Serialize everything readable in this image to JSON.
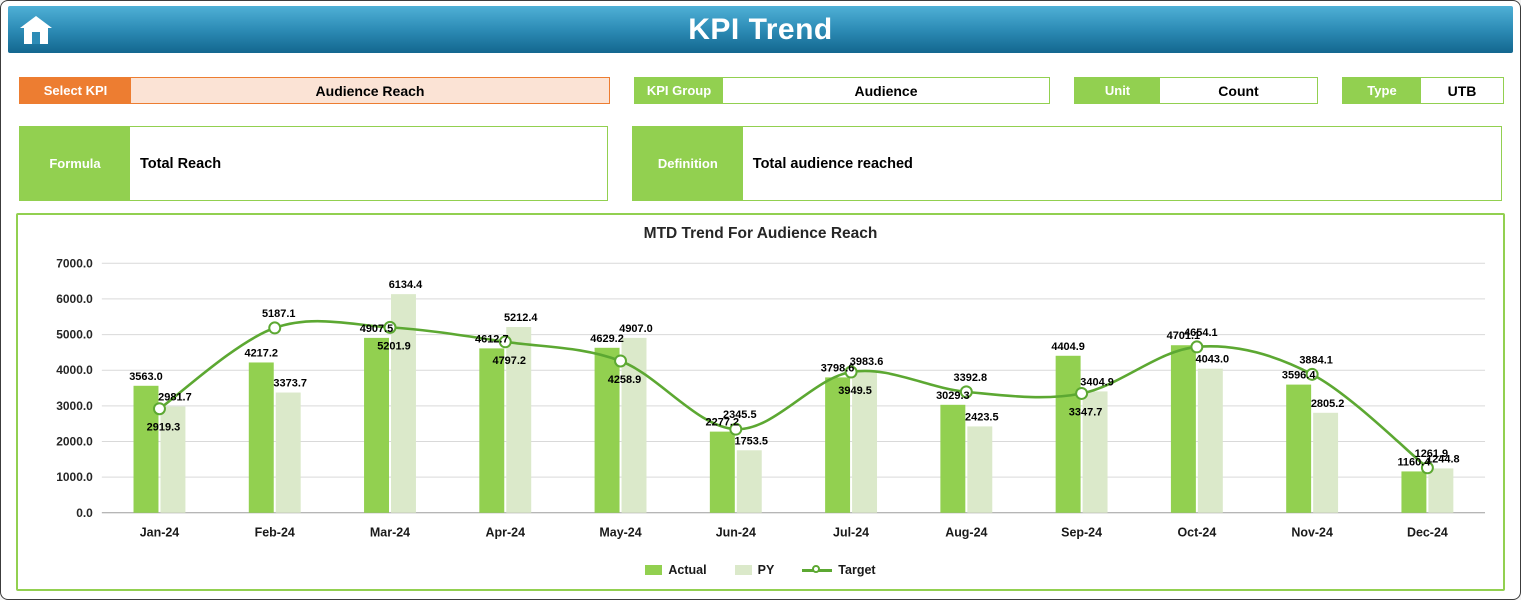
{
  "header": {
    "title": "KPI Trend",
    "home_icon": "home-icon"
  },
  "filters": {
    "select_kpi_label": "Select KPI",
    "select_kpi_value": "Audience Reach",
    "kpi_group_label": "KPI Group",
    "kpi_group_value": "Audience",
    "unit_label": "Unit",
    "unit_value": "Count",
    "type_label": "Type",
    "type_value": "UTB"
  },
  "info": {
    "formula_label": "Formula",
    "formula_value": "Total Reach",
    "definition_label": "Definition",
    "definition_value": "Total audience reached"
  },
  "colors": {
    "accent_orange": "#ed7d31",
    "accent_orange_fill": "#fbe3d5",
    "accent_green": "#92d050",
    "header_blue": "#2d8cb6"
  },
  "chart_data": {
    "type": "bar",
    "subtype": "combo-bar-line",
    "title": "MTD Trend For Audience Reach",
    "categories": [
      "Jan-24",
      "Feb-24",
      "Mar-24",
      "Apr-24",
      "May-24",
      "Jun-24",
      "Jul-24",
      "Aug-24",
      "Sep-24",
      "Oct-24",
      "Nov-24",
      "Dec-24"
    ],
    "series": [
      {
        "name": "Actual",
        "type": "bar",
        "color": "#92d050",
        "values": [
          3563.0,
          4217.2,
          4907.5,
          4612.7,
          4629.2,
          2277.2,
          3798.6,
          3029.3,
          4404.9,
          4701.1,
          3596.4,
          1160.4
        ]
      },
      {
        "name": "PY",
        "type": "bar",
        "color": "#dbe9ca",
        "values": [
          2981.7,
          3373.7,
          6134.4,
          5212.4,
          4907.0,
          1753.5,
          3983.6,
          2423.5,
          3404.9,
          4043.0,
          2805.2,
          1244.8
        ]
      },
      {
        "name": "Target",
        "type": "line",
        "color": "#5ca832",
        "values": [
          2919.3,
          5187.1,
          5201.9,
          4797.2,
          4258.9,
          2345.5,
          3949.5,
          3392.8,
          3347.7,
          4654.1,
          3884.1,
          1261.9
        ]
      }
    ],
    "ylim": [
      0,
      7000
    ],
    "ytick_step": 1000,
    "grid": true,
    "legend_position": "bottom"
  }
}
